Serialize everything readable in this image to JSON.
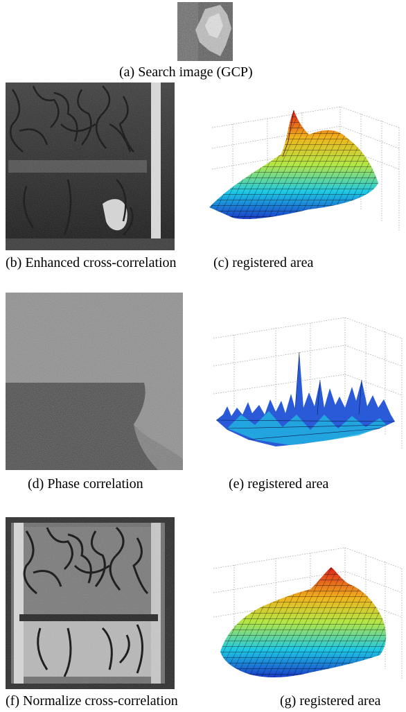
{
  "figure": {
    "captions": {
      "a": "(a) Search image (GCP)",
      "b": "(b) Enhanced cross-correlation",
      "c": "(c) registered area",
      "d": "(d) Phase correlation",
      "e": "(e) registered area",
      "f": "(f) Normalize cross-correlation",
      "g": "(g) registered area"
    }
  }
}
